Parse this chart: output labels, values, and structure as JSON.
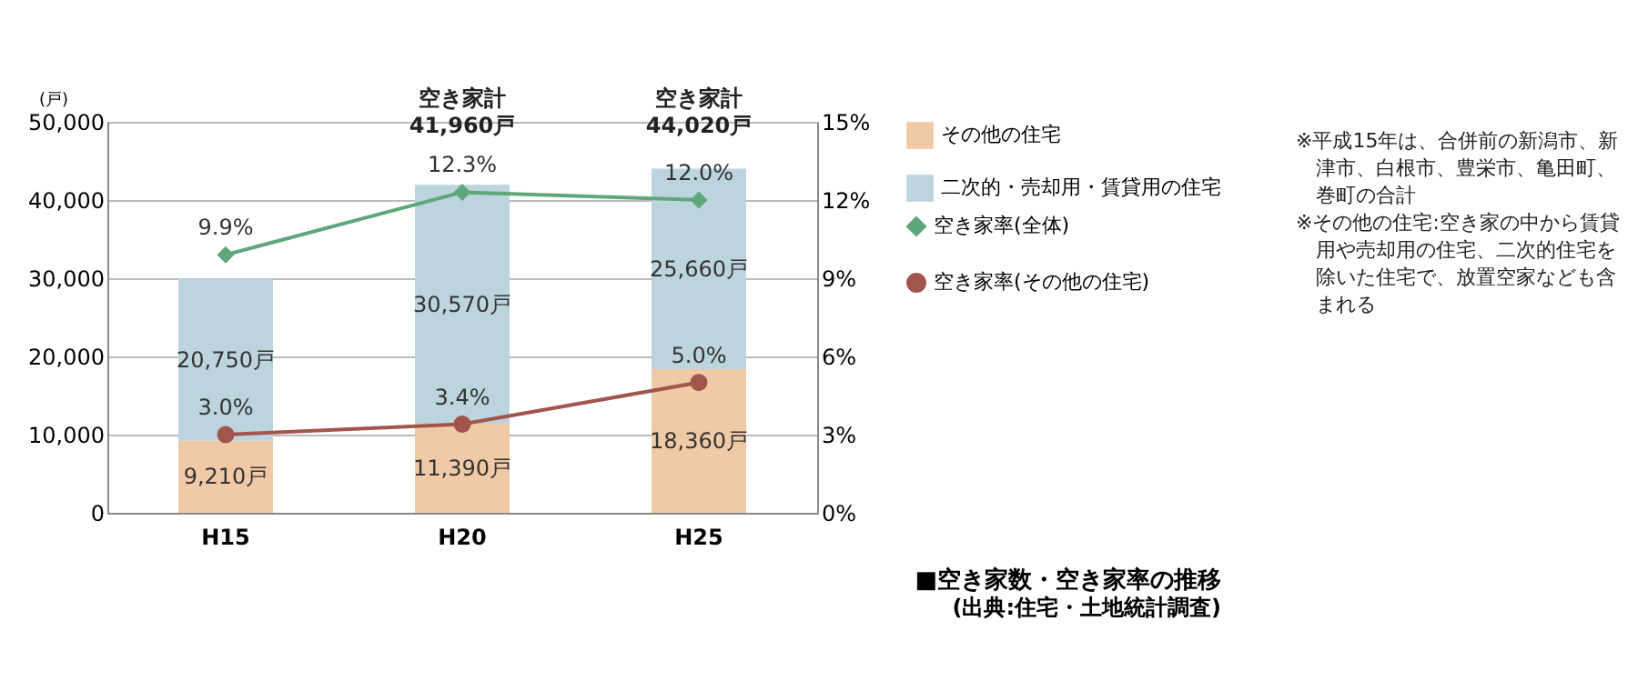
{
  "chart_data": {
    "type": "bar",
    "stacked": true,
    "categories": [
      "H15",
      "H20",
      "H25"
    ],
    "title": "■空き家数・空き家率の推移",
    "subtitle": "(出典:住宅・土地統計調査)",
    "ylabel": "(戸)",
    "ylim": [
      0,
      50000
    ],
    "yticks": [
      0,
      {
        "value": 10000,
        "label": "10,000"
      },
      {
        "value": 20000,
        "label": "20,000"
      },
      {
        "value": 30000,
        "label": "30,000"
      },
      {
        "value": 40000,
        "label": "40,000"
      },
      {
        "value": 50000,
        "label": "50,000"
      }
    ],
    "y2lim": [
      0,
      15
    ],
    "y2ticks": [
      {
        "value": 0,
        "label": "0%"
      },
      {
        "value": 3,
        "label": "3%"
      },
      {
        "value": 6,
        "label": "6%"
      },
      {
        "value": 9,
        "label": "9%"
      },
      {
        "value": 12,
        "label": "12%"
      },
      {
        "value": 15,
        "label": "15%"
      }
    ],
    "grid": "y",
    "legend": "right",
    "series": [
      {
        "name": "その他の住宅",
        "color": "#f0c9a6",
        "values": [
          9210,
          11390,
          18360
        ],
        "value_labels": [
          "9,210戸",
          "11,390戸",
          "18,360戸"
        ]
      },
      {
        "name": "二次的・売却用・賃貸用の住宅",
        "color": "#bcd4de",
        "values": [
          20750,
          30570,
          25660
        ],
        "value_labels": [
          "20,750戸",
          "30,570戸",
          "25,660戸"
        ]
      },
      {
        "name": "空き家率(全体)",
        "type": "line",
        "axis": "y2",
        "marker": "diamond",
        "color": "#5fa77a",
        "values": [
          9.9,
          12.3,
          12.0
        ],
        "value_labels": [
          "9.9%",
          "12.3%",
          "12.0%"
        ]
      },
      {
        "name": "空き家率(その他の住宅)",
        "type": "line",
        "axis": "y2",
        "marker": "circle",
        "color": "#a2554c",
        "values": [
          3.0,
          3.4,
          5.0
        ],
        "value_labels": [
          "3.0%",
          "3.4%",
          "5.0%"
        ]
      }
    ],
    "totals": [
      null,
      "空き家計\n41,960戸",
      "空き家計\n44,020戸"
    ],
    "annotations": [
      "※平成15年は、合併前の新潟市、新津市、白根市、豊栄市、亀田町、巻町の合計",
      "※その他の住宅:空き家の中から賃貸用や売却用の住宅、二次的住宅を除いた住宅で、放置空家なども含まれる"
    ]
  }
}
